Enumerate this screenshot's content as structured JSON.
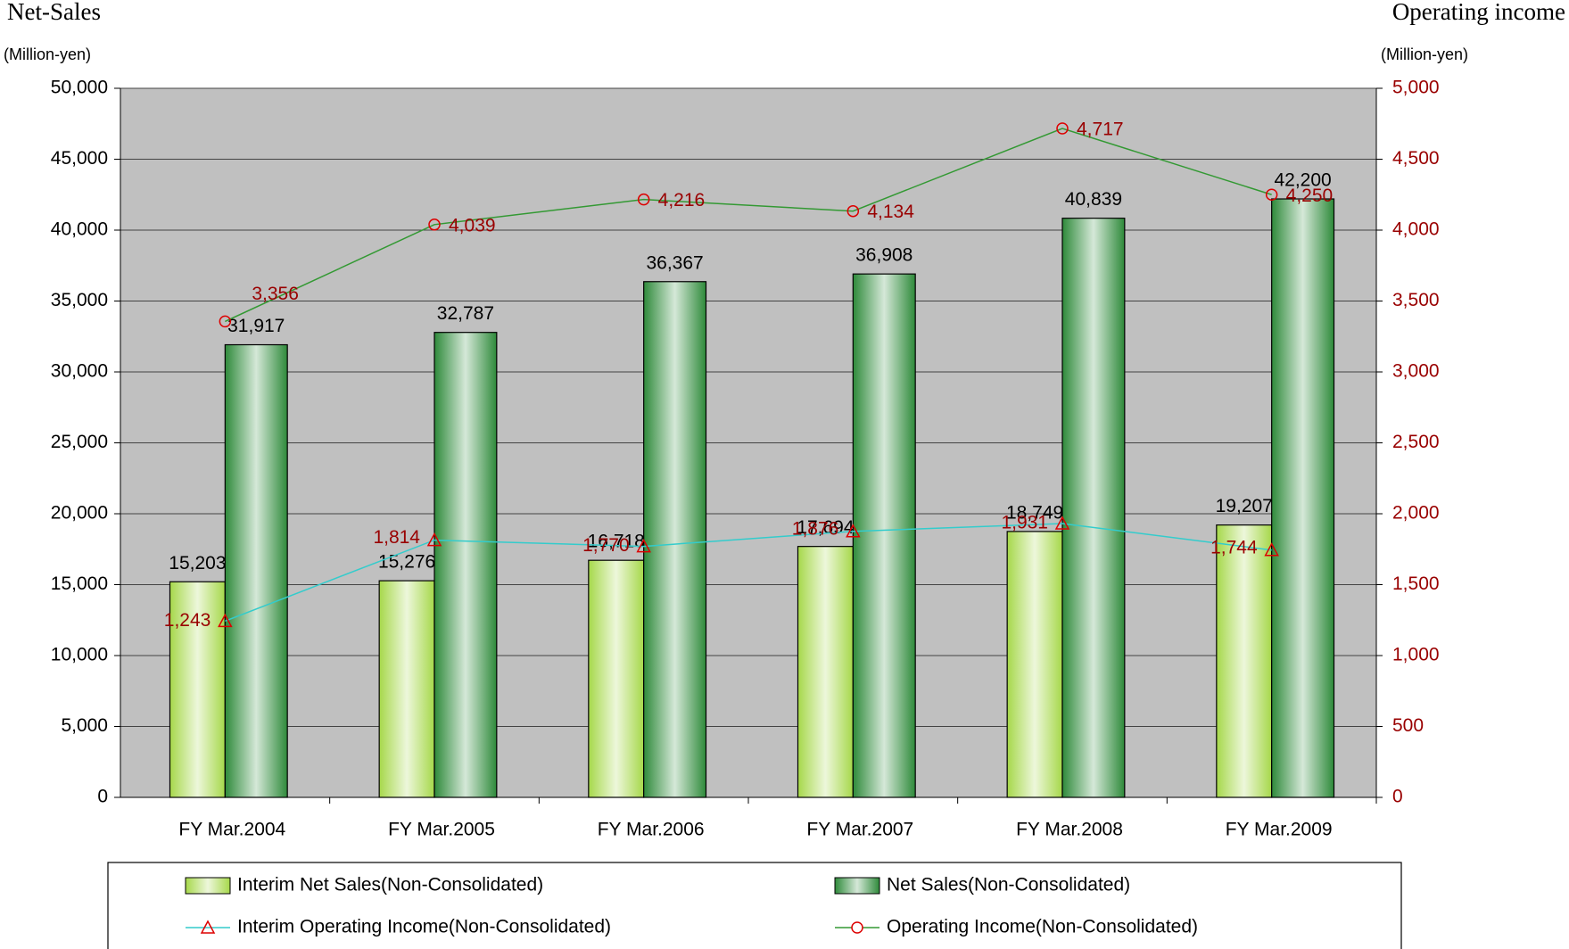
{
  "chart_data": {
    "type": "bar",
    "y_axis_title": "Net-Sales",
    "y_axis_unit": "(Million-yen)",
    "y2_axis_title": "Operating income",
    "y2_axis_unit": "(Million-yen)",
    "categories": [
      "FY Mar.2004",
      "FY Mar.2005",
      "FY Mar.2006",
      "FY Mar.2007",
      "FY Mar.2008",
      "FY Mar.2009"
    ],
    "ylim": [
      0,
      50000
    ],
    "yticks": [
      {
        "value": 0,
        "label": "0"
      },
      {
        "value": 5000,
        "label": "5,000"
      },
      {
        "value": 10000,
        "label": "10,000"
      },
      {
        "value": 15000,
        "label": "15,000"
      },
      {
        "value": 20000,
        "label": "20,000"
      },
      {
        "value": 25000,
        "label": "25,000"
      },
      {
        "value": 30000,
        "label": "30,000"
      },
      {
        "value": 35000,
        "label": "35,000"
      },
      {
        "value": 40000,
        "label": "40,000"
      },
      {
        "value": 45000,
        "label": "45,000"
      },
      {
        "value": 50000,
        "label": "50,000"
      }
    ],
    "y2lim": [
      0,
      5000
    ],
    "y2ticks": [
      0,
      500,
      {
        "value": 1000,
        "label": "1,000"
      },
      {
        "value": 1500,
        "label": "1,500"
      },
      {
        "value": 2000,
        "label": "2,000"
      },
      {
        "value": 2500,
        "label": "2,500"
      },
      {
        "value": 3000,
        "label": "3,000"
      },
      {
        "value": 3500,
        "label": "3,500"
      },
      {
        "value": 4000,
        "label": "4,000"
      },
      {
        "value": 4500,
        "label": "4,500"
      },
      {
        "value": 5000,
        "label": "5,000"
      }
    ],
    "grid": true,
    "plot_background": "#c0c0c0",
    "y2_color": "#990000",
    "series": [
      {
        "name": "Interim Net Sales(Non-Consolidated)",
        "type": "bar",
        "color": "#a6d84a",
        "values": [
          15203,
          15276,
          16718,
          17694,
          18749,
          19207
        ],
        "value_labels": [
          "15,203",
          "15,276",
          "16,718",
          "17,694",
          "18,749",
          "19,207"
        ]
      },
      {
        "name": "Net Sales(Non-Consolidated)",
        "type": "bar",
        "color": "#2e8a3a",
        "values": [
          31917,
          32787,
          36367,
          36908,
          40839,
          42200
        ],
        "value_labels": [
          "31,917",
          "32,787",
          "36,367",
          "36,908",
          "40,839",
          "42,200"
        ]
      },
      {
        "name": "Interim Operating Income(Non-Consolidated)",
        "type": "line",
        "axis": "y2",
        "color": "#33cccc",
        "marker": "triangle",
        "marker_color": "#dd0000",
        "values": [
          1243,
          1814,
          1770,
          1876,
          1931,
          1744
        ],
        "value_labels": [
          "1,243",
          "1,814",
          "1,770",
          "1,876",
          "1,931",
          "1,744"
        ]
      },
      {
        "name": "Operating Income(Non-Consolidated)",
        "type": "line",
        "axis": "y2",
        "color": "#339933",
        "marker": "circle",
        "marker_color": "#dd0000",
        "values": [
          3356,
          4039,
          4216,
          4134,
          4717,
          4250
        ],
        "value_labels": [
          "3,356",
          "4,039",
          "4,216",
          "4,134",
          "4,717",
          "4,250"
        ]
      }
    ]
  }
}
